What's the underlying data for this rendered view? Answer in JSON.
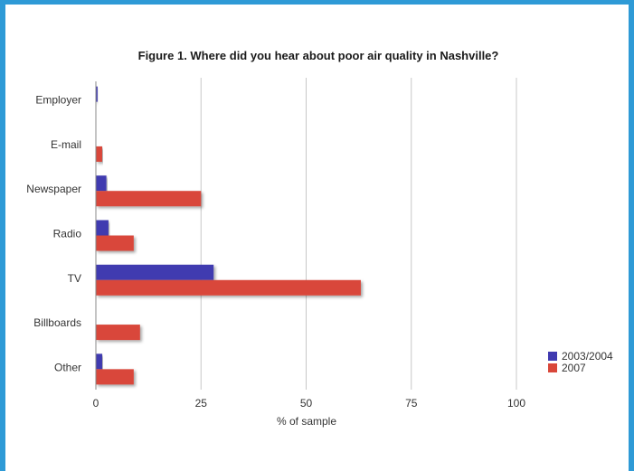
{
  "chart_data": {
    "type": "bar",
    "orientation": "horizontal",
    "title": "Figure 1. Where did you hear about poor air quality in Nashville?",
    "xlabel": "% of sample",
    "ylabel": "",
    "xlim": [
      0,
      100
    ],
    "xticks": [
      "0",
      "25",
      "50",
      "75",
      "100"
    ],
    "categories": [
      "Employer",
      "E-mail",
      "Newspaper",
      "Radio",
      "TV",
      "Billboards",
      "Other"
    ],
    "series": [
      {
        "name": "2003/2004",
        "color": "#3f3ab0",
        "values": [
          0.4,
          0,
          2.5,
          3,
          28,
          0,
          1.5
        ]
      },
      {
        "name": "2007",
        "color": "#d9473a",
        "values": [
          0,
          1.5,
          25,
          9,
          63,
          10.5,
          9
        ]
      }
    ],
    "grid": true,
    "legend": "bottom-right"
  }
}
